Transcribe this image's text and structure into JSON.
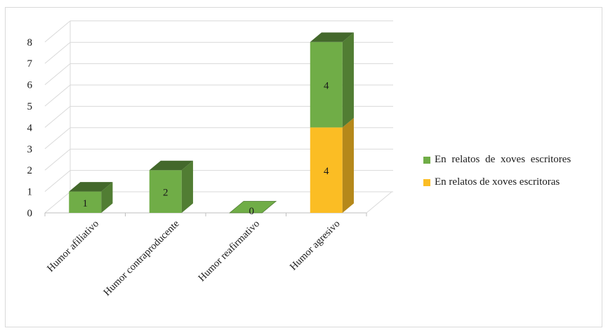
{
  "chart_data": {
    "type": "bar",
    "stacked": true,
    "three_d": true,
    "categories": [
      "Humor afiliativo",
      "Humor contraproducente",
      "Humor reafirmativo",
      "Humor agresivo"
    ],
    "series": [
      {
        "name": "En relatos de xoves escritoras",
        "values": [
          0,
          0,
          0,
          4
        ],
        "color": "#fbbd24"
      },
      {
        "name": "En relatos de xoves escritores",
        "values": [
          1,
          2,
          0,
          4
        ],
        "color": "#70ad47"
      }
    ],
    "data_labels": [
      "1",
      "2",
      "0",
      "4",
      "4"
    ],
    "y_ticks": [
      "0",
      "1",
      "2",
      "3",
      "4",
      "5",
      "6",
      "7",
      "8"
    ],
    "ylim": [
      0,
      8
    ],
    "grid": true,
    "legend_position": "right",
    "legend_order": [
      "En relatos de xoves escritores",
      "En relatos de xoves escritoras"
    ]
  }
}
